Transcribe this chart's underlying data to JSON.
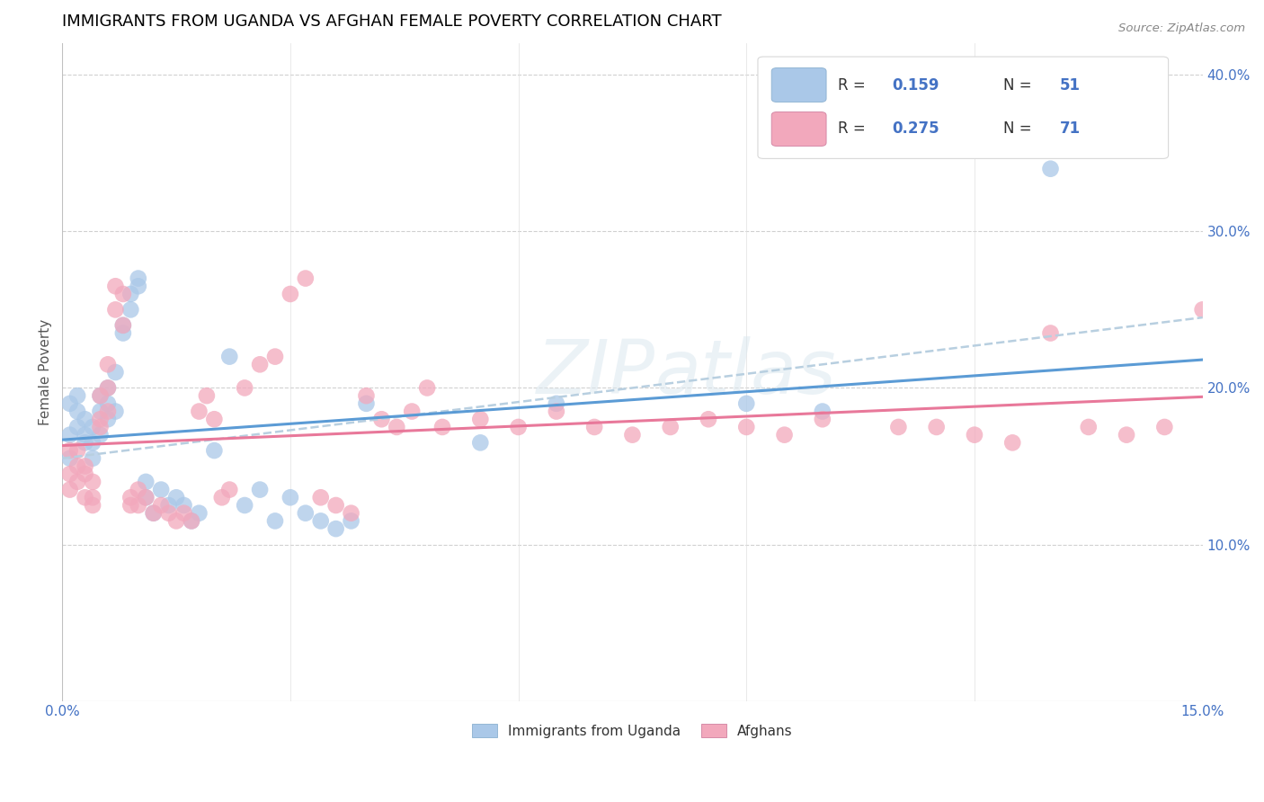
{
  "title": "IMMIGRANTS FROM UGANDA VS AFGHAN FEMALE POVERTY CORRELATION CHART",
  "source": "Source: ZipAtlas.com",
  "ylabel_label": "Female Poverty",
  "xlim": [
    0.0,
    0.15
  ],
  "ylim": [
    0.0,
    0.42
  ],
  "color_uganda": "#aac8e8",
  "color_afghan": "#f2a8bc",
  "trendline_uganda_solid": "#5b9bd5",
  "trendline_uganda_dashed": "#b0c8e0",
  "trendline_afghan_color": "#e8789a",
  "legend_label1": "Immigrants from Uganda",
  "legend_label2": "Afghans",
  "uganda_x": [
    0.001,
    0.001,
    0.001,
    0.002,
    0.002,
    0.002,
    0.003,
    0.003,
    0.003,
    0.004,
    0.004,
    0.004,
    0.005,
    0.005,
    0.005,
    0.006,
    0.006,
    0.006,
    0.007,
    0.007,
    0.008,
    0.008,
    0.009,
    0.009,
    0.01,
    0.01,
    0.011,
    0.011,
    0.012,
    0.013,
    0.014,
    0.015,
    0.016,
    0.017,
    0.018,
    0.02,
    0.022,
    0.024,
    0.026,
    0.028,
    0.03,
    0.032,
    0.034,
    0.036,
    0.038,
    0.04,
    0.055,
    0.065,
    0.09,
    0.1,
    0.13
  ],
  "uganda_y": [
    0.155,
    0.17,
    0.19,
    0.175,
    0.195,
    0.185,
    0.17,
    0.18,
    0.165,
    0.175,
    0.165,
    0.155,
    0.195,
    0.17,
    0.185,
    0.19,
    0.2,
    0.18,
    0.185,
    0.21,
    0.235,
    0.24,
    0.26,
    0.25,
    0.265,
    0.27,
    0.14,
    0.13,
    0.12,
    0.135,
    0.125,
    0.13,
    0.125,
    0.115,
    0.12,
    0.16,
    0.22,
    0.125,
    0.135,
    0.115,
    0.13,
    0.12,
    0.115,
    0.11,
    0.115,
    0.19,
    0.165,
    0.19,
    0.19,
    0.185,
    0.34
  ],
  "afghan_x": [
    0.001,
    0.001,
    0.001,
    0.002,
    0.002,
    0.002,
    0.003,
    0.003,
    0.003,
    0.004,
    0.004,
    0.004,
    0.005,
    0.005,
    0.005,
    0.006,
    0.006,
    0.006,
    0.007,
    0.007,
    0.008,
    0.008,
    0.009,
    0.009,
    0.01,
    0.01,
    0.011,
    0.012,
    0.013,
    0.014,
    0.015,
    0.016,
    0.017,
    0.018,
    0.019,
    0.02,
    0.021,
    0.022,
    0.024,
    0.026,
    0.028,
    0.03,
    0.032,
    0.034,
    0.036,
    0.038,
    0.04,
    0.042,
    0.044,
    0.046,
    0.048,
    0.05,
    0.055,
    0.06,
    0.065,
    0.07,
    0.075,
    0.08,
    0.085,
    0.09,
    0.095,
    0.1,
    0.11,
    0.115,
    0.12,
    0.125,
    0.13,
    0.135,
    0.14,
    0.145,
    0.15
  ],
  "afghan_y": [
    0.145,
    0.16,
    0.135,
    0.16,
    0.15,
    0.14,
    0.13,
    0.15,
    0.145,
    0.14,
    0.13,
    0.125,
    0.195,
    0.18,
    0.175,
    0.185,
    0.2,
    0.215,
    0.265,
    0.25,
    0.24,
    0.26,
    0.13,
    0.125,
    0.135,
    0.125,
    0.13,
    0.12,
    0.125,
    0.12,
    0.115,
    0.12,
    0.115,
    0.185,
    0.195,
    0.18,
    0.13,
    0.135,
    0.2,
    0.215,
    0.22,
    0.26,
    0.27,
    0.13,
    0.125,
    0.12,
    0.195,
    0.18,
    0.175,
    0.185,
    0.2,
    0.175,
    0.18,
    0.175,
    0.185,
    0.175,
    0.17,
    0.175,
    0.18,
    0.175,
    0.17,
    0.18,
    0.175,
    0.175,
    0.17,
    0.165,
    0.235,
    0.175,
    0.17,
    0.175,
    0.25
  ],
  "trendline_ug_y0": 0.155,
  "trendline_ug_y1": 0.22,
  "trendline_af_y0": 0.145,
  "trendline_af_y1": 0.245
}
